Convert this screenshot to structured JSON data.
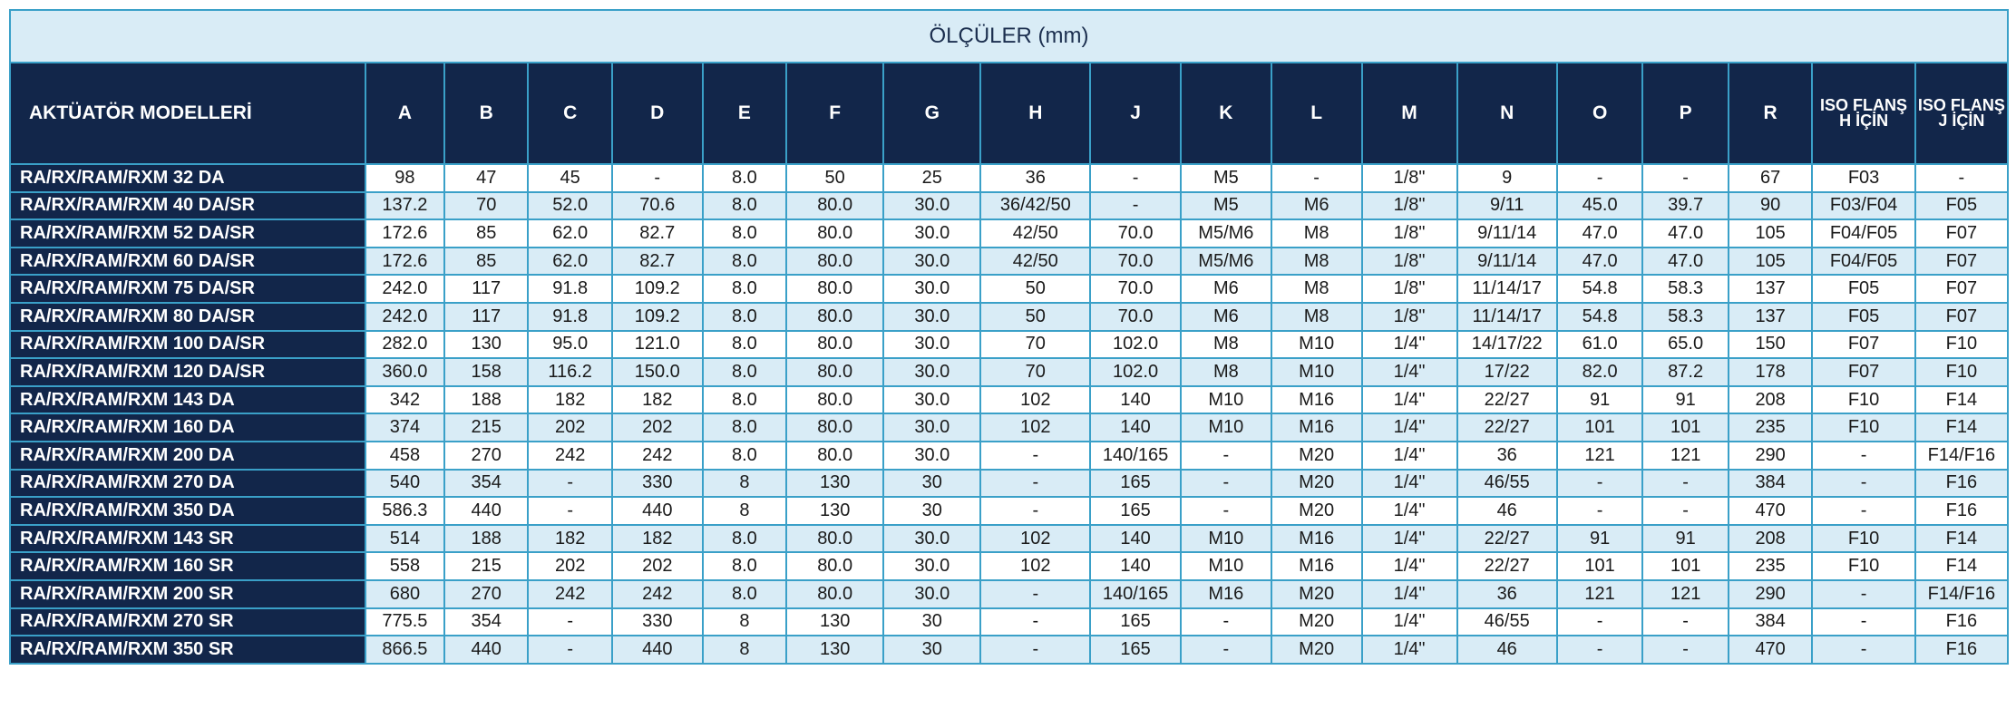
{
  "title": "ÖLÇÜLER (mm)",
  "columns": [
    "AKTÜATÖR MODELLERİ",
    "A",
    "B",
    "C",
    "D",
    "E",
    "F",
    "G",
    "H",
    "J",
    "K",
    "L",
    "M",
    "N",
    "O",
    "P",
    "R",
    "ISO FLANŞ H İÇİN",
    "ISO FLANŞ J İÇİN"
  ],
  "rows": [
    [
      "RA/RX/RAM/RXM 32 DA",
      "98",
      "47",
      "45",
      "-",
      "8.0",
      "50",
      "25",
      "36",
      "-",
      "M5",
      "-",
      "1/8\"",
      "9",
      "-",
      "-",
      "67",
      "F03",
      "-"
    ],
    [
      "RA/RX/RAM/RXM 40 DA/SR",
      "137.2",
      "70",
      "52.0",
      "70.6",
      "8.0",
      "80.0",
      "30.0",
      "36/42/50",
      "-",
      "M5",
      "M6",
      "1/8\"",
      "9/11",
      "45.0",
      "39.7",
      "90",
      "F03/F04",
      "F05"
    ],
    [
      "RA/RX/RAM/RXM 52 DA/SR",
      "172.6",
      "85",
      "62.0",
      "82.7",
      "8.0",
      "80.0",
      "30.0",
      "42/50",
      "70.0",
      "M5/M6",
      "M8",
      "1/8\"",
      "9/11/14",
      "47.0",
      "47.0",
      "105",
      "F04/F05",
      "F07"
    ],
    [
      "RA/RX/RAM/RXM 60 DA/SR",
      "172.6",
      "85",
      "62.0",
      "82.7",
      "8.0",
      "80.0",
      "30.0",
      "42/50",
      "70.0",
      "M5/M6",
      "M8",
      "1/8\"",
      "9/11/14",
      "47.0",
      "47.0",
      "105",
      "F04/F05",
      "F07"
    ],
    [
      "RA/RX/RAM/RXM 75 DA/SR",
      "242.0",
      "117",
      "91.8",
      "109.2",
      "8.0",
      "80.0",
      "30.0",
      "50",
      "70.0",
      "M6",
      "M8",
      "1/8\"",
      "11/14/17",
      "54.8",
      "58.3",
      "137",
      "F05",
      "F07"
    ],
    [
      "RA/RX/RAM/RXM 80 DA/SR",
      "242.0",
      "117",
      "91.8",
      "109.2",
      "8.0",
      "80.0",
      "30.0",
      "50",
      "70.0",
      "M6",
      "M8",
      "1/8\"",
      "11/14/17",
      "54.8",
      "58.3",
      "137",
      "F05",
      "F07"
    ],
    [
      "RA/RX/RAM/RXM 100 DA/SR",
      "282.0",
      "130",
      "95.0",
      "121.0",
      "8.0",
      "80.0",
      "30.0",
      "70",
      "102.0",
      "M8",
      "M10",
      "1/4\"",
      "14/17/22",
      "61.0",
      "65.0",
      "150",
      "F07",
      "F10"
    ],
    [
      "RA/RX/RAM/RXM 120 DA/SR",
      "360.0",
      "158",
      "116.2",
      "150.0",
      "8.0",
      "80.0",
      "30.0",
      "70",
      "102.0",
      "M8",
      "M10",
      "1/4\"",
      "17/22",
      "82.0",
      "87.2",
      "178",
      "F07",
      "F10"
    ],
    [
      "RA/RX/RAM/RXM 143 DA",
      "342",
      "188",
      "182",
      "182",
      "8.0",
      "80.0",
      "30.0",
      "102",
      "140",
      "M10",
      "M16",
      "1/4\"",
      "22/27",
      "91",
      "91",
      "208",
      "F10",
      "F14"
    ],
    [
      "RA/RX/RAM/RXM 160 DA",
      "374",
      "215",
      "202",
      "202",
      "8.0",
      "80.0",
      "30.0",
      "102",
      "140",
      "M10",
      "M16",
      "1/4\"",
      "22/27",
      "101",
      "101",
      "235",
      "F10",
      "F14"
    ],
    [
      "RA/RX/RAM/RXM 200 DA",
      "458",
      "270",
      "242",
      "242",
      "8.0",
      "80.0",
      "30.0",
      "-",
      "140/165",
      "-",
      "M20",
      "1/4\"",
      "36",
      "121",
      "121",
      "290",
      "-",
      "F14/F16"
    ],
    [
      "RA/RX/RAM/RXM 270 DA",
      "540",
      "354",
      "-",
      "330",
      "8",
      "130",
      "30",
      "-",
      "165",
      "-",
      "M20",
      "1/4\"",
      "46/55",
      "-",
      "-",
      "384",
      "-",
      "F16"
    ],
    [
      "RA/RX/RAM/RXM 350 DA",
      "586.3",
      "440",
      "-",
      "440",
      "8",
      "130",
      "30",
      "-",
      "165",
      "-",
      "M20",
      "1/4\"",
      "46",
      "-",
      "-",
      "470",
      "-",
      "F16"
    ],
    [
      "RA/RX/RAM/RXM 143 SR",
      "514",
      "188",
      "182",
      "182",
      "8.0",
      "80.0",
      "30.0",
      "102",
      "140",
      "M10",
      "M16",
      "1/4\"",
      "22/27",
      "91",
      "91",
      "208",
      "F10",
      "F14"
    ],
    [
      "RA/RX/RAM/RXM 160 SR",
      "558",
      "215",
      "202",
      "202",
      "8.0",
      "80.0",
      "30.0",
      "102",
      "140",
      "M10",
      "M16",
      "1/4\"",
      "22/27",
      "101",
      "101",
      "235",
      "F10",
      "F14"
    ],
    [
      "RA/RX/RAM/RXM 200 SR",
      "680",
      "270",
      "242",
      "242",
      "8.0",
      "80.0",
      "30.0",
      "-",
      "140/165",
      "M16",
      "M20",
      "1/4\"",
      "36",
      "121",
      "121",
      "290",
      "-",
      "F14/F16"
    ],
    [
      "RA/RX/RAM/RXM 270 SR",
      "775.5",
      "354",
      "-",
      "330",
      "8",
      "130",
      "30",
      "-",
      "165",
      "-",
      "M20",
      "1/4\"",
      "46/55",
      "-",
      "-",
      "384",
      "-",
      "F16"
    ],
    [
      "RA/RX/RAM/RXM 350 SR",
      "866.5",
      "440",
      "-",
      "440",
      "8",
      "130",
      "30",
      "-",
      "165",
      "-",
      "M20",
      "1/4\"",
      "46",
      "-",
      "-",
      "470",
      "-",
      "F16"
    ]
  ]
}
